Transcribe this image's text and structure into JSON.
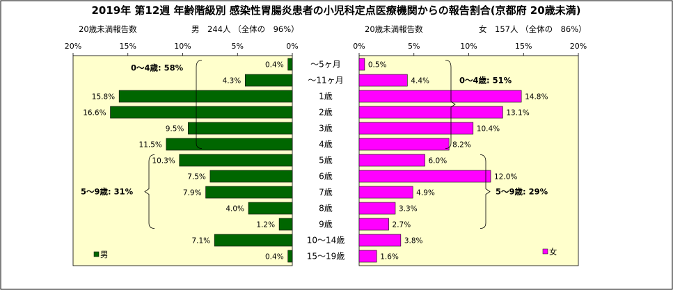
{
  "title": "2019年 第12週 年齢階級別 感染性胃腸炎患者の小児科定点医療機関からの報告割合(京都府 20歳未満)",
  "colors": {
    "male": "#006600",
    "female": "#ff00ff",
    "plot_bg": "#ffffcc",
    "axis": "#000000"
  },
  "chart_data": [
    {
      "type": "bar",
      "orientation": "horizontal",
      "direction": "right-to-left",
      "subtitle_left": "20歳未満報告数",
      "subtitle_right": "男　244人 （全体の　96%）",
      "xlim": [
        0,
        20
      ],
      "xticks": [
        "0%",
        "5%",
        "10%",
        "15%",
        "20%"
      ],
      "grid": false,
      "legend": "bottom-left",
      "series": [
        {
          "name": "男",
          "values": [
            0.4,
            4.3,
            15.8,
            16.6,
            9.5,
            11.5,
            10.3,
            7.5,
            7.9,
            4.0,
            1.2,
            7.1,
            0.4
          ],
          "labels": [
            "0.4%",
            "4.3%",
            "15.8%",
            "16.6%",
            "9.5%",
            "11.5%",
            "10.3%",
            "7.5%",
            "7.9%",
            "4.0%",
            "1.2%",
            "7.1%",
            "0.4%"
          ]
        }
      ],
      "annotations": [
        "0〜4歳: 58%",
        "5〜9歳: 31%"
      ]
    },
    {
      "type": "bar",
      "orientation": "horizontal",
      "direction": "left-to-right",
      "subtitle_left": "20歳未満報告数",
      "subtitle_right": "女　157人 （全体の　86%）",
      "xlim": [
        0,
        20
      ],
      "xticks": [
        "0%",
        "5%",
        "10%",
        "15%",
        "20%"
      ],
      "grid": false,
      "legend": "bottom-right",
      "series": [
        {
          "name": "女",
          "values": [
            0.5,
            4.4,
            14.8,
            13.1,
            10.4,
            8.2,
            6.0,
            12.0,
            4.9,
            3.3,
            2.7,
            3.8,
            1.6
          ],
          "labels": [
            "0.5%",
            "4.4%",
            "14.8%",
            "13.1%",
            "10.4%",
            "8.2%",
            "6.0%",
            "12.0%",
            "4.9%",
            "3.3%",
            "2.7%",
            "3.8%",
            "1.6%"
          ]
        }
      ],
      "annotations": [
        "0〜4歳: 51%",
        "5〜9歳: 29%"
      ]
    }
  ],
  "categories": [
    "〜5ヶ月",
    "〜11ヶ月",
    "1歳",
    "2歳",
    "3歳",
    "4歳",
    "5歳",
    "6歳",
    "7歳",
    "8歳",
    "9歳",
    "10〜14歳",
    "15〜19歳"
  ]
}
